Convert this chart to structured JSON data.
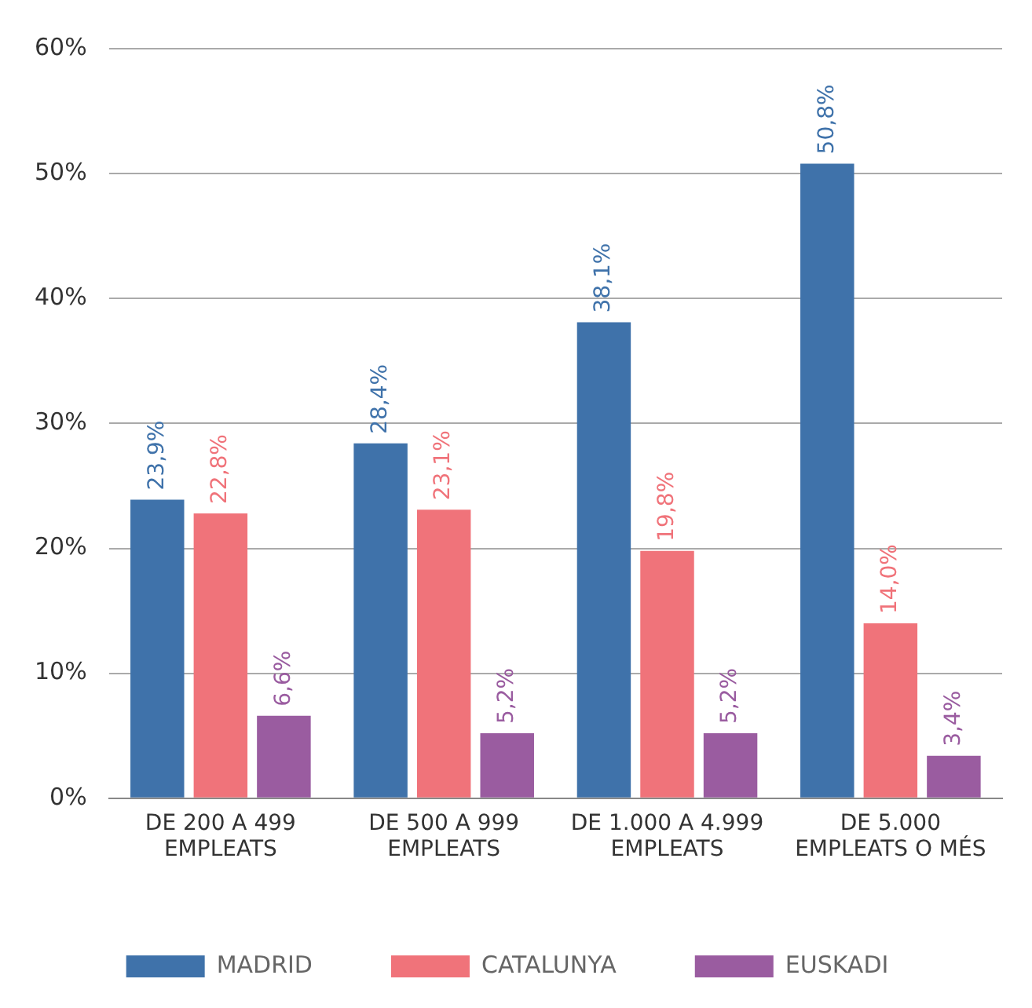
{
  "chart_data": {
    "type": "bar",
    "categories": [
      "DE 200 A 499 EMPLEATS",
      "DE 500 A 999 EMPLEATS",
      "DE 1.000 A 4.999 EMPLEATS",
      "DE 5.000 EMPLEATS O MÉS"
    ],
    "series": [
      {
        "name": "MADRID",
        "color": "#3f72aa",
        "values": [
          23.9,
          28.4,
          38.1,
          50.8
        ],
        "value_labels": [
          "23,9%",
          "28,4%",
          "38,1%",
          "50,8%"
        ]
      },
      {
        "name": "CATALUNYA",
        "color": "#f0737a",
        "values": [
          22.8,
          23.1,
          19.8,
          14.0
        ],
        "value_labels": [
          "22,8%",
          "23,1%",
          "19,8%",
          "14,0%"
        ]
      },
      {
        "name": "EUSKADI",
        "color": "#9a5ca0",
        "values": [
          6.6,
          5.2,
          5.2,
          3.4
        ],
        "value_labels": [
          "6,6%",
          "5,2%",
          "5,2%",
          "3,4%"
        ]
      }
    ],
    "ylim": [
      0,
      60
    ],
    "yticks": [
      {
        "value": 0,
        "label": "0%"
      },
      {
        "value": 10,
        "label": "10%"
      },
      {
        "value": 20,
        "label": "20%"
      },
      {
        "value": 30,
        "label": "30%"
      },
      {
        "value": 40,
        "label": "40%"
      },
      {
        "value": 50,
        "label": "50%"
      },
      {
        "value": 60,
        "label": "60%"
      }
    ],
    "grid": "y",
    "legend": "bottom"
  }
}
